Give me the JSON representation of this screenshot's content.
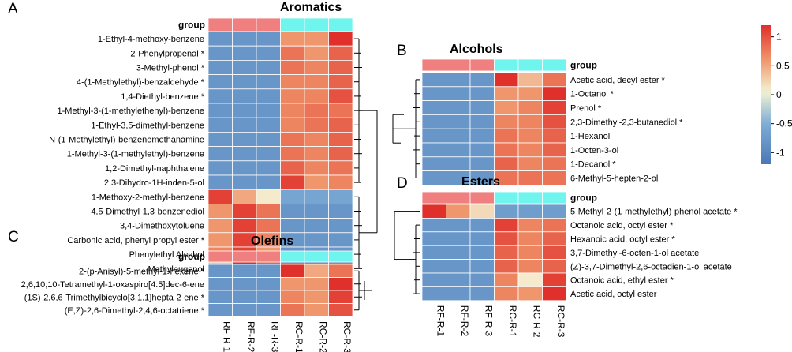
{
  "chart_data": [
    {
      "type": "heatmap",
      "panel": "A",
      "title": "Aromatics",
      "group_label": "group",
      "columns": [
        "RF-R-1",
        "RF-R-2",
        "RF-R-3",
        "RC-R-1",
        "RC-R-2",
        "RC-R-3"
      ],
      "column_groups": [
        "RF",
        "RF",
        "RF",
        "RC",
        "RC",
        "RC"
      ],
      "rows": [
        "1-Ethyl-4-methoxy-benzene",
        "2-Phenylpropenal *",
        "3-Methyl-phenol *",
        "4-(1-Methylethyl)-benzaldehyde *",
        "1,4-Diethyl-benzene *",
        "1-Methyl-3-(1-methylethenyl)-benzene",
        "1-Ethyl-3,5-dimethyl-benzene",
        "N-(1-Methylethyl)-benzenemethanamine",
        "1-Methyl-3-(1-methylethyl)-benzene",
        "1,2-Dimethyl-naphthalene",
        "2,3-Dihydro-1H-inden-5-ol",
        "1-Methoxy-2-methyl-benzene",
        "4,5-Dimethyl-1,3-benzenediol",
        "3,4-Dimethoxytoluene",
        "Carbonic acid, phenyl propyl ester *",
        "Phenylethyl Alcohol",
        "Methyleugenol"
      ],
      "values": [
        [
          -0.8,
          -0.8,
          -0.8,
          0.6,
          0.6,
          1.2
        ],
        [
          -0.8,
          -0.8,
          -0.8,
          0.8,
          0.6,
          0.9
        ],
        [
          -0.8,
          -0.8,
          -0.8,
          0.8,
          0.7,
          0.9
        ],
        [
          -0.8,
          -0.8,
          -0.8,
          0.7,
          0.7,
          0.9
        ],
        [
          -0.8,
          -0.8,
          -0.8,
          0.7,
          0.7,
          1.0
        ],
        [
          -0.8,
          -0.8,
          -0.8,
          0.7,
          0.8,
          0.8
        ],
        [
          -0.8,
          -0.8,
          -0.8,
          0.7,
          0.8,
          0.9
        ],
        [
          -0.8,
          -0.8,
          -0.8,
          0.8,
          0.7,
          0.9
        ],
        [
          -0.8,
          -0.8,
          -0.8,
          0.8,
          0.7,
          0.9
        ],
        [
          -0.8,
          -0.8,
          -0.8,
          0.9,
          0.7,
          0.8
        ],
        [
          -0.8,
          -0.8,
          -0.8,
          1.1,
          0.6,
          0.7
        ],
        [
          1.1,
          0.5,
          0.1,
          -0.6,
          -0.6,
          -0.6
        ],
        [
          0.6,
          1.1,
          0.8,
          -0.8,
          -0.8,
          -0.8
        ],
        [
          0.6,
          1.1,
          0.8,
          -0.8,
          -0.8,
          -0.8
        ],
        [
          0.6,
          1.1,
          0.7,
          -0.8,
          -0.8,
          -0.8
        ],
        [
          0.7,
          1.1,
          0.6,
          -0.8,
          -0.8,
          -0.8
        ],
        [
          0.3,
          1.2,
          0.9,
          -0.8,
          -0.8,
          -0.8
        ]
      ]
    },
    {
      "type": "heatmap",
      "panel": "B",
      "title": "Alcohols",
      "group_label": "group",
      "columns": [
        "RF-R-1",
        "RF-R-2",
        "RF-R-3",
        "RC-R-1",
        "RC-R-2",
        "RC-R-3"
      ],
      "column_groups": [
        "RF",
        "RF",
        "RF",
        "RC",
        "RC",
        "RC"
      ],
      "rows": [
        "Acetic acid, decyl ester *",
        "1-Octanol *",
        "Prenol *",
        "2,3-Dimethyl-2,3-butanediol *",
        "1-Hexanol",
        "1-Octen-3-ol",
        "1-Decanol *",
        "6-Methyl-5-hepten-2-ol"
      ],
      "values": [
        [
          -0.8,
          -0.8,
          -0.8,
          1.2,
          0.4,
          0.8
        ],
        [
          -0.8,
          -0.8,
          -0.8,
          0.6,
          0.6,
          1.2
        ],
        [
          -0.8,
          -0.8,
          -0.8,
          0.6,
          0.7,
          1.1
        ],
        [
          -0.8,
          -0.8,
          -0.8,
          0.7,
          0.7,
          1.0
        ],
        [
          -0.8,
          -0.8,
          -0.8,
          0.8,
          0.7,
          0.9
        ],
        [
          -0.8,
          -0.8,
          -0.8,
          0.8,
          0.7,
          0.9
        ],
        [
          -0.8,
          -0.8,
          -0.8,
          0.9,
          0.7,
          0.8
        ],
        [
          -0.8,
          -0.8,
          -0.8,
          0.8,
          0.8,
          0.8
        ]
      ]
    },
    {
      "type": "heatmap",
      "panel": "C",
      "title": "Olefins",
      "group_label": "group",
      "columns": [
        "RF-R-1",
        "RF-R-2",
        "RF-R-3",
        "RC-R-1",
        "RC-R-2",
        "RC-R-3"
      ],
      "column_groups": [
        "RF",
        "RF",
        "RF",
        "RC",
        "RC",
        "RC"
      ],
      "rows": [
        "2-(p-Anisyl)-5-methyl-1-hexene *",
        "2,6,10,10-Tetramethyl-1-oxaspiro[4.5]dec-6-ene",
        "(1S)-2,6,6-Trimethylbicyclo[3.1.1]hepta-2-ene *",
        "(E,Z)-2,6-Dimethyl-2,4,6-octatriene *"
      ],
      "values": [
        [
          -0.8,
          -0.8,
          -0.8,
          1.2,
          0.5,
          0.8
        ],
        [
          -0.8,
          -0.8,
          -0.8,
          0.6,
          0.6,
          1.2
        ],
        [
          -0.8,
          -0.8,
          -0.8,
          0.7,
          0.6,
          1.1
        ],
        [
          -0.8,
          -0.8,
          -0.8,
          0.8,
          0.6,
          1.0
        ]
      ]
    },
    {
      "type": "heatmap",
      "panel": "D",
      "title": "Esters",
      "group_label": "group",
      "columns": [
        "RF-R-1",
        "RF-R-2",
        "RF-R-3",
        "RC-R-1",
        "RC-R-2",
        "RC-R-3"
      ],
      "column_groups": [
        "RF",
        "RF",
        "RF",
        "RC",
        "RC",
        "RC"
      ],
      "rows": [
        "5-Methyl-2-(1-methylethyl)-phenol acetate *",
        "Octanoic acid, octyl ester *",
        "Hexanoic acid, octyl ester *",
        "3,7-Dimethyl-6-octen-1-ol acetate",
        "(Z)-3,7-Dimethyl-2,6-octadien-1-ol acetate",
        "Octanoic acid, ethyl ester *",
        "Acetic acid, octyl ester"
      ],
      "values": [
        [
          1.2,
          0.6,
          0.2,
          -0.7,
          -0.7,
          -0.7
        ],
        [
          -0.8,
          -0.8,
          -0.8,
          1.1,
          0.7,
          0.8
        ],
        [
          -0.8,
          -0.8,
          -0.8,
          1.0,
          0.7,
          0.9
        ],
        [
          -0.8,
          -0.8,
          -0.8,
          0.9,
          0.7,
          1.0
        ],
        [
          -0.8,
          -0.8,
          -0.8,
          0.9,
          0.7,
          0.9
        ],
        [
          -0.8,
          -0.8,
          -0.8,
          0.7,
          0.1,
          1.1
        ],
        [
          -0.8,
          -0.8,
          -0.8,
          0.7,
          0.6,
          1.2
        ]
      ]
    }
  ],
  "legend": {
    "ticks": [
      1,
      0.5,
      0,
      -0.5,
      -1
    ],
    "tick_labels": [
      "1",
      "0.5",
      "0",
      "-0.5",
      "-1"
    ],
    "range": [
      -1.2,
      1.2
    ]
  },
  "colors": {
    "group_RF": "#f08080",
    "group_RC": "#6ff5ee",
    "low": "#4a77b7",
    "mid_low": "#7eadd5",
    "mid": "#f3f3d4",
    "mid_high": "#f0966c",
    "high": "#e0302b"
  }
}
